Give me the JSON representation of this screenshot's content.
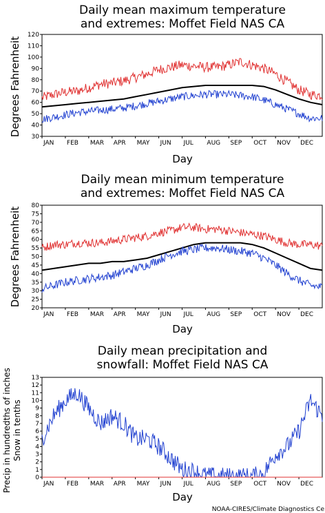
{
  "charts_meta": {
    "credit": "NOAA-CIRES/Climate Diagnostics Ce"
  },
  "chart_data": [
    {
      "type": "line",
      "title_line1": "Daily mean maximum temperature",
      "title_line2": "and extremes: Moffet Field NAS CA",
      "xlabel": "Day",
      "ylabel": "Degrees Fahrenheit",
      "ylim": [
        30,
        120
      ],
      "yticks": [
        30,
        40,
        50,
        60,
        70,
        80,
        90,
        100,
        110,
        120
      ],
      "months": [
        "JAN",
        "FEB",
        "MAR",
        "APR",
        "MAY",
        "JUN",
        "JUL",
        "AUG",
        "SEP",
        "OCT",
        "NOV",
        "DEC"
      ],
      "grid": false,
      "series": [
        {
          "color": "#e03030",
          "noise": 4.5,
          "values": [
            64,
            67,
            69,
            70,
            73,
            76,
            77,
            79,
            82,
            85,
            89,
            91,
            93,
            92,
            91,
            91,
            93,
            96,
            93,
            90,
            85,
            78,
            71,
            67,
            66
          ]
        },
        {
          "color": "#000000",
          "width": 2,
          "values": [
            56,
            57,
            58,
            59,
            60,
            61,
            62,
            63,
            65,
            67,
            69,
            71,
            73,
            74,
            75,
            75,
            75,
            75,
            75,
            74,
            71,
            67,
            63,
            60,
            58
          ]
        },
        {
          "color": "#2040d0",
          "noise": 3.5,
          "values": [
            45,
            47,
            49,
            51,
            52,
            53,
            54,
            55,
            57,
            59,
            61,
            63,
            65,
            66,
            67,
            67,
            67,
            66,
            65,
            62,
            58,
            54,
            50,
            46,
            46
          ]
        }
      ]
    },
    {
      "type": "line",
      "title_line1": "Daily mean minimum temperature",
      "title_line2": "and extremes: Moffet Field NAS CA",
      "xlabel": "Day",
      "ylabel": "Degrees Fahrenheit",
      "ylim": [
        20,
        80
      ],
      "yticks": [
        20,
        25,
        30,
        35,
        40,
        45,
        50,
        55,
        60,
        65,
        70,
        75,
        80
      ],
      "months": [
        "JAN",
        "FEB",
        "MAR",
        "APR",
        "MAY",
        "JUN",
        "JUL",
        "AUG",
        "SEP",
        "OCT",
        "NOV",
        "DEC"
      ],
      "grid": false,
      "series": [
        {
          "color": "#e03030",
          "noise": 2.5,
          "values": [
            55,
            57,
            57,
            58,
            58,
            58,
            59,
            60,
            61,
            62,
            64,
            65,
            67,
            67,
            66,
            66,
            65,
            64,
            63,
            62,
            60,
            58,
            57,
            57,
            56
          ]
        },
        {
          "color": "#000000",
          "width": 2,
          "values": [
            42,
            43,
            44,
            45,
            46,
            46,
            47,
            47,
            48,
            49,
            51,
            53,
            55,
            57,
            58,
            58,
            58,
            58,
            57,
            55,
            52,
            49,
            46,
            43,
            42
          ]
        },
        {
          "color": "#2040d0",
          "noise": 2.5,
          "values": [
            31,
            33,
            35,
            36,
            37,
            38,
            39,
            41,
            43,
            45,
            48,
            51,
            53,
            54,
            55,
            55,
            54,
            53,
            52,
            49,
            45,
            40,
            36,
            33,
            32
          ]
        }
      ]
    },
    {
      "type": "line",
      "title_line1": "Daily mean precipitation and",
      "title_line2": "snowfall: Moffet Field NAS CA",
      "xlabel": "Day",
      "ylabel_line1": "Precip in hundredths of inches",
      "ylabel_line2": "Snow in tenths",
      "ylim": [
        0,
        13
      ],
      "yticks": [
        0,
        1,
        2,
        3,
        4,
        5,
        6,
        7,
        8,
        9,
        10,
        11,
        12,
        13
      ],
      "months": [
        "JAN",
        "FEB",
        "MAR",
        "APR",
        "MAY",
        "JUN",
        "JUL",
        "AUG",
        "SEP",
        "OCT",
        "NOV",
        "DEC"
      ],
      "grid": false,
      "series": [
        {
          "color": "#2040d0",
          "noise": 1.2,
          "values": [
            5,
            8,
            10,
            11,
            9,
            7,
            8,
            7,
            5,
            5,
            4,
            2.5,
            1,
            0.8,
            0.2,
            0.1,
            0.1,
            0.1,
            0.1,
            0.5,
            3,
            4,
            6,
            10,
            8
          ]
        },
        {
          "color": "#e03030",
          "values": [
            0,
            0,
            0,
            0,
            0,
            0,
            0,
            0,
            0,
            0,
            0,
            0,
            0,
            0,
            0,
            0,
            0,
            0,
            0,
            0,
            0,
            0,
            0,
            0,
            0
          ]
        }
      ]
    }
  ]
}
